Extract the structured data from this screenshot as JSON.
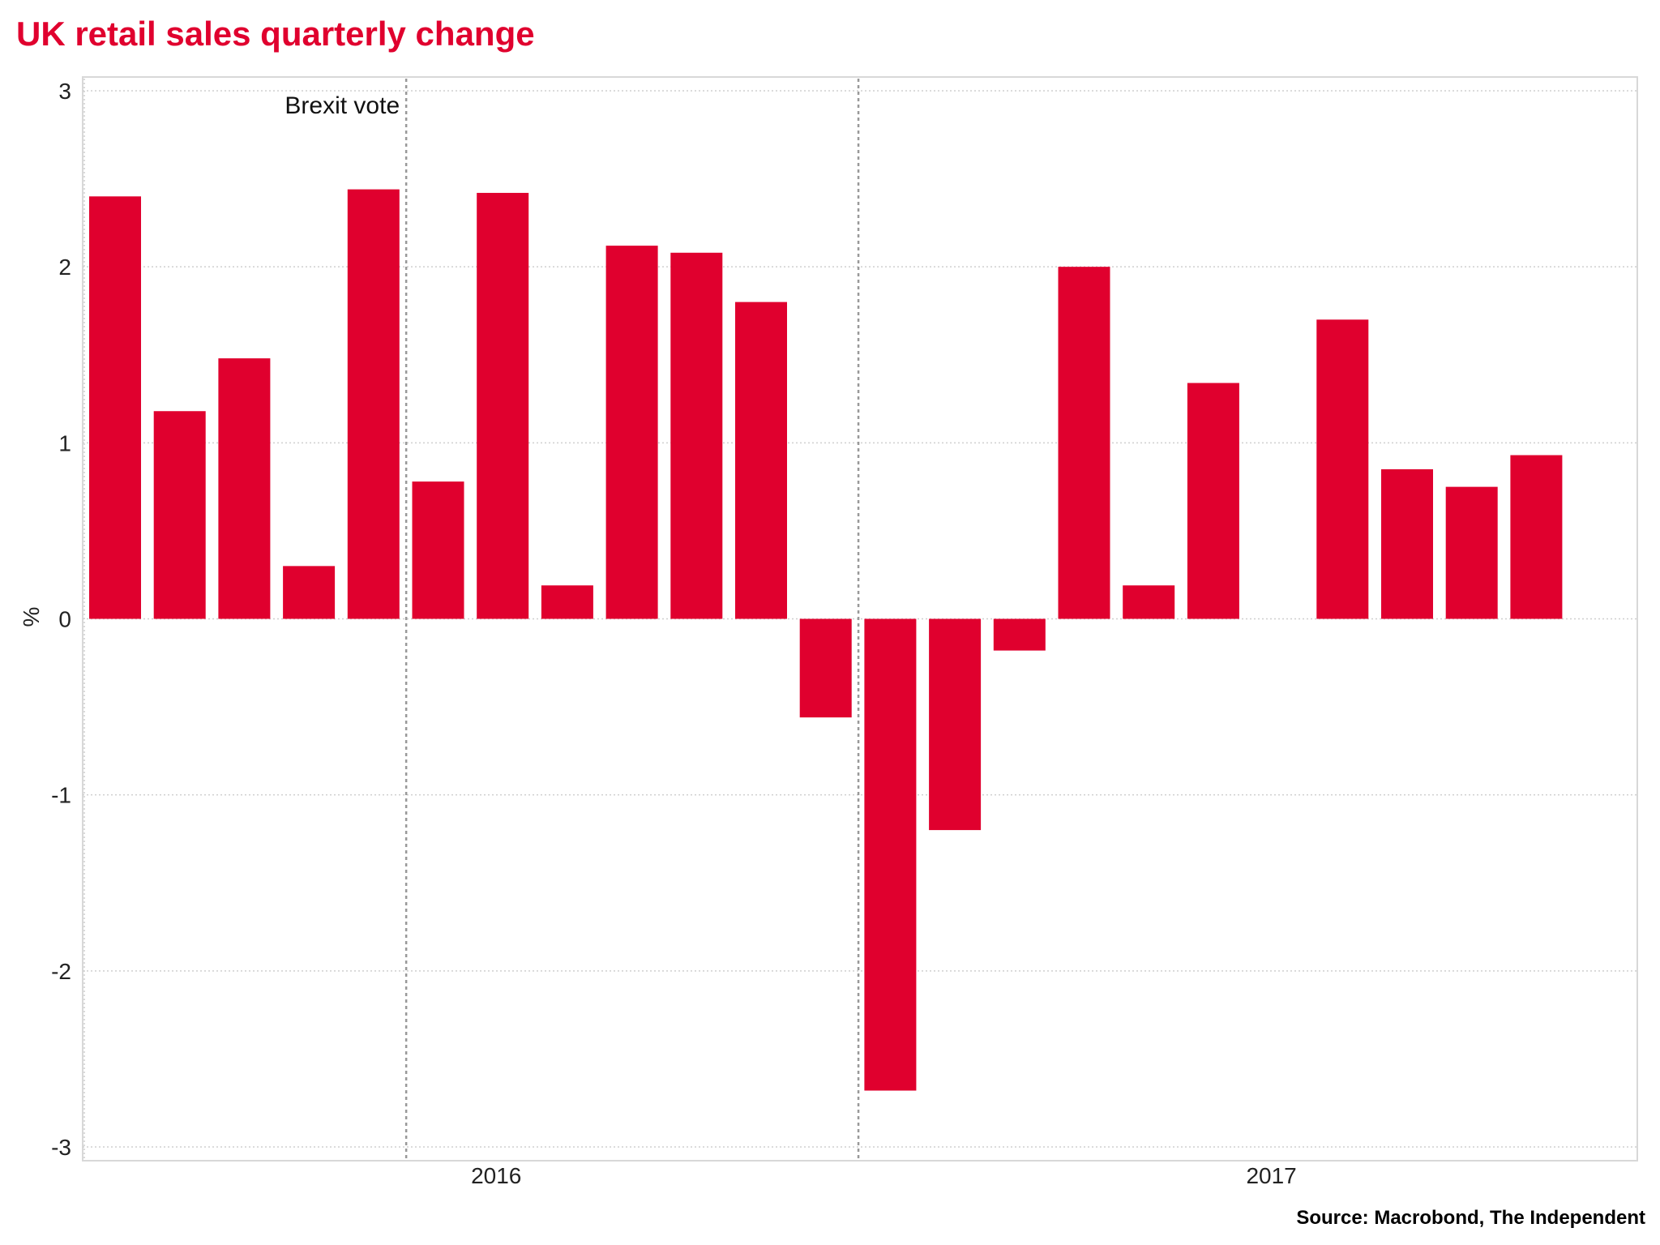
{
  "colors": {
    "bar": "#e0002e",
    "title": "#e0002e",
    "grid": "#cfcfcf",
    "annotation_line": "#999999",
    "frame": "#d8d8d8"
  },
  "source": "Source: Macrobond, The Independent",
  "chart_data": {
    "type": "bar",
    "title": "UK retail sales quarterly change",
    "ylabel": "%",
    "xlabel": "",
    "ylim": [
      -3,
      3
    ],
    "yticks": [
      3,
      2,
      1,
      0,
      -1,
      -2,
      -3
    ],
    "grid": true,
    "values": [
      2.4,
      1.18,
      1.48,
      0.3,
      2.44,
      0.78,
      2.42,
      0.19,
      2.12,
      2.08,
      1.8,
      -0.56,
      -2.68,
      -1.2,
      -0.18,
      2.0,
      0.19,
      1.34,
      0.0,
      1.7,
      0.85,
      0.75,
      0.93
    ],
    "x_axis_labels": [
      {
        "label": "2016",
        "index": 5.9
      },
      {
        "label": "2017",
        "index": 17.9
      }
    ],
    "annotations": [
      {
        "text": "Brexit vote",
        "index": 4.5
      },
      {
        "text": "",
        "index": 11.5
      }
    ]
  }
}
